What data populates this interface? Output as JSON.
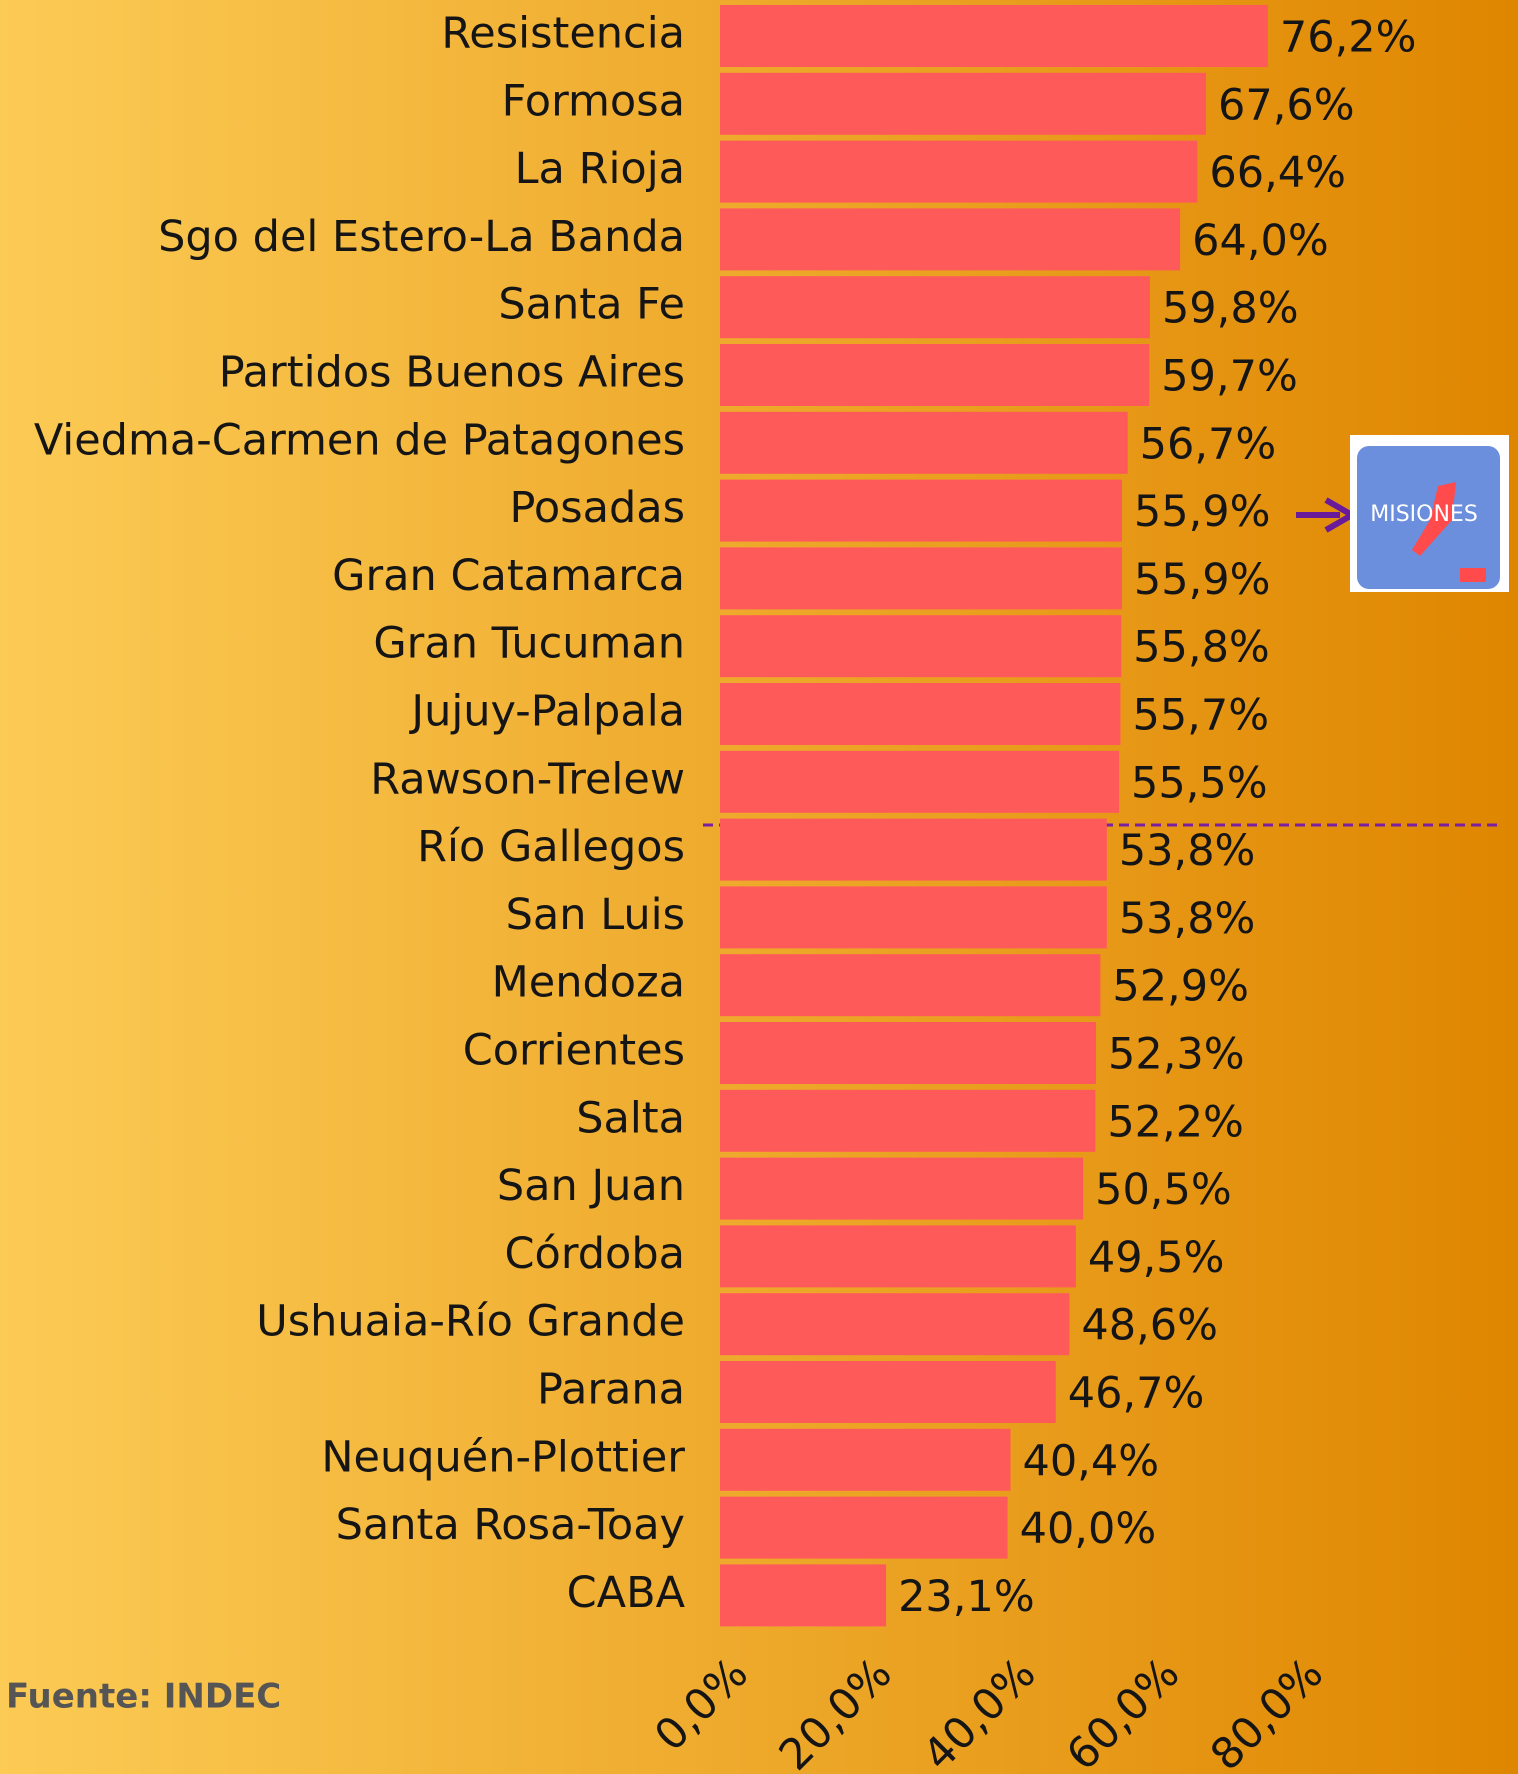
{
  "chart_data": {
    "type": "bar",
    "orientation": "horizontal",
    "categories": [
      "Resistencia",
      "Formosa",
      "La Rioja",
      "Sgo del Estero-La Banda",
      "Santa Fe",
      "Partidos Buenos Aires",
      "Viedma-Carmen de Patagones",
      "Posadas",
      "Gran Catamarca",
      "Gran Tucuman",
      "Jujuy-Palpala",
      "Rawson-Trelew",
      "Río Gallegos",
      "San Luis",
      "Mendoza",
      "Corrientes",
      "Salta",
      "San Juan",
      "Córdoba",
      "Ushuaia-Río Grande",
      "Parana",
      "Neuquén-Plottier",
      "Santa Rosa-Toay",
      "CABA"
    ],
    "values": [
      76.2,
      67.6,
      66.4,
      64.0,
      59.8,
      59.7,
      56.7,
      55.9,
      55.9,
      55.8,
      55.7,
      55.5,
      53.8,
      53.8,
      52.9,
      52.3,
      52.2,
      50.5,
      49.5,
      48.6,
      46.7,
      40.4,
      40.0,
      23.1
    ],
    "value_labels": [
      "76,2%",
      "67,6%",
      "66,4%",
      "64,0%",
      "59,8%",
      "59,7%",
      "56,7%",
      "55,9%",
      "55,9%",
      "55,8%",
      "55,7%",
      "55,5%",
      "53,8%",
      "53,8%",
      "52,9%",
      "52,3%",
      "52,2%",
      "50,5%",
      "49,5%",
      "48,6%",
      "46,7%",
      "40,4%",
      "40,0%",
      "23,1%"
    ],
    "color": "#ff5a5a",
    "xlim": [
      0,
      80
    ],
    "xticks": [
      {
        "value": 0,
        "label": "0,0%"
      },
      {
        "value": 20,
        "label": "20,0%"
      },
      {
        "value": 40,
        "label": "40,0%"
      },
      {
        "value": 60,
        "label": "60,0%"
      },
      {
        "value": 80,
        "label": "80,0%"
      }
    ],
    "source": "Fuente: INDEC",
    "logo_text": "MISIONES"
  }
}
